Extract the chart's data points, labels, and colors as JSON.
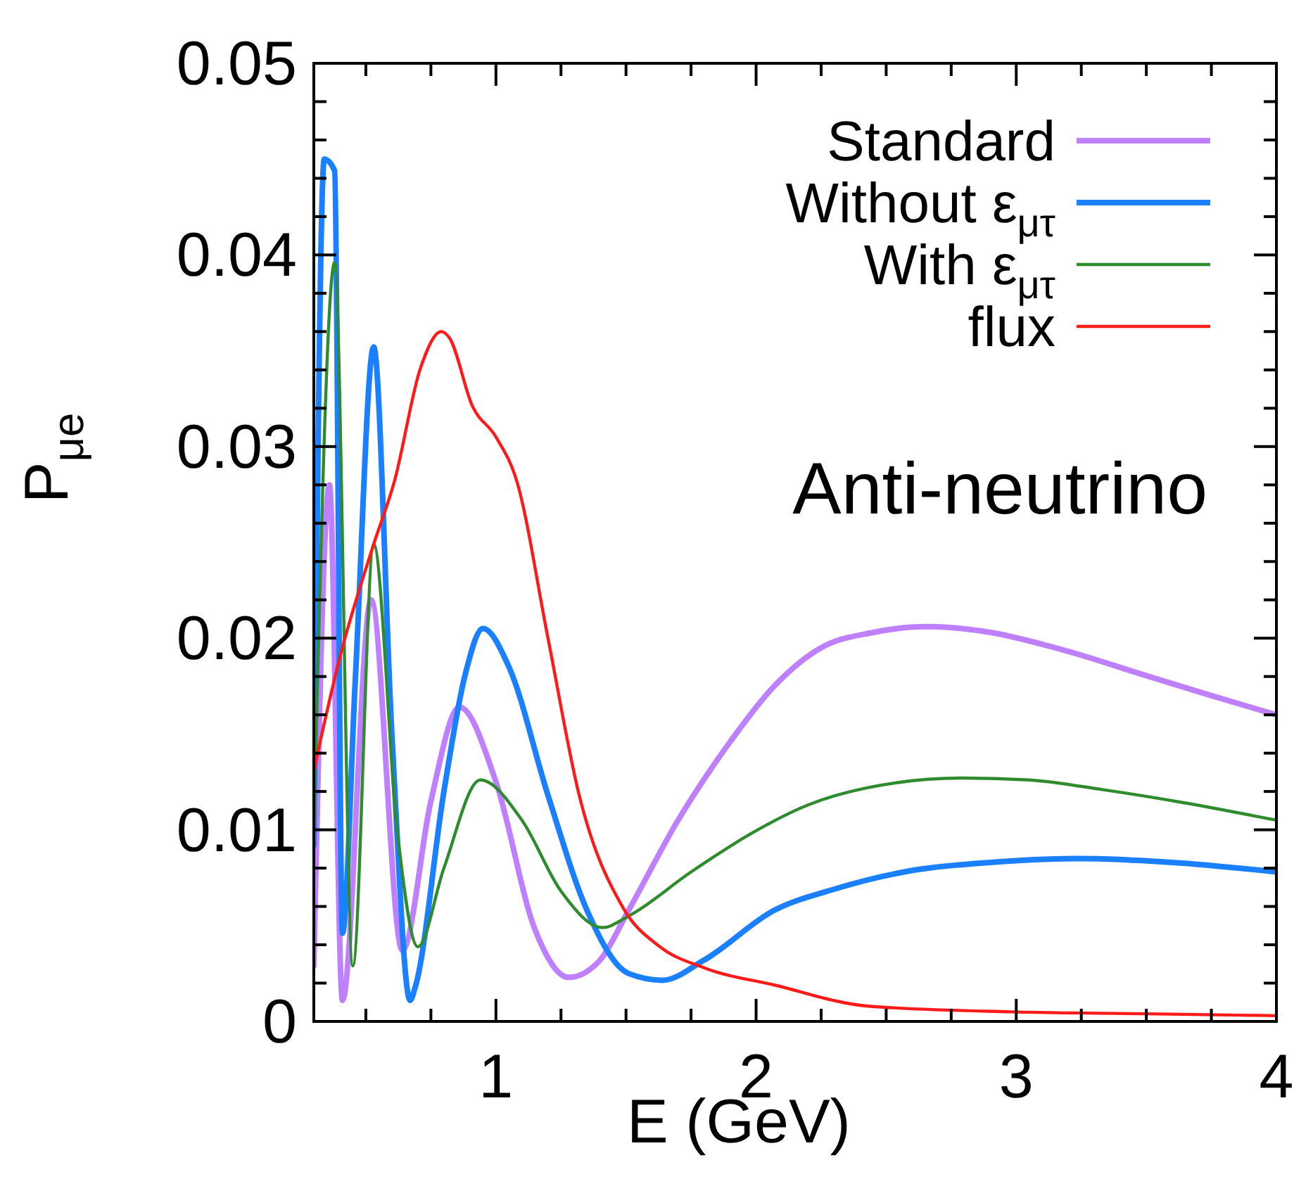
{
  "chart_data": {
    "type": "line",
    "xlabel": "E (GeV)",
    "ylabel": "P$_{μe}$",
    "xlim": [
      0.3,
      4
    ],
    "xticks": [
      {
        "value": 0.5,
        "label": null
      },
      {
        "value": 0.75,
        "label": null
      },
      1,
      {
        "value": 1.25,
        "label": null
      },
      {
        "value": 1.5,
        "label": null
      },
      {
        "value": 1.75,
        "label": null
      },
      2,
      {
        "value": 2.25,
        "label": null
      },
      {
        "value": 2.5,
        "label": null
      },
      {
        "value": 2.75,
        "label": null
      },
      3,
      {
        "value": 3.25,
        "label": null
      },
      {
        "value": 3.5,
        "label": null
      },
      {
        "value": 3.75,
        "label": null
      },
      4
    ],
    "ylim": [
      0,
      0.05
    ],
    "yticks": [
      0,
      {
        "value": 0.002,
        "label": null
      },
      {
        "value": 0.004,
        "label": null
      },
      {
        "value": 0.006,
        "label": null
      },
      {
        "value": 0.008,
        "label": null
      },
      0.01,
      {
        "value": 0.012,
        "label": null
      },
      {
        "value": 0.014,
        "label": null
      },
      {
        "value": 0.016,
        "label": null
      },
      {
        "value": 0.018,
        "label": null
      },
      0.02,
      {
        "value": 0.022,
        "label": null
      },
      {
        "value": 0.024,
        "label": null
      },
      {
        "value": 0.026,
        "label": null
      },
      {
        "value": 0.028,
        "label": null
      },
      0.03,
      {
        "value": 0.032,
        "label": null
      },
      {
        "value": 0.034,
        "label": null
      },
      {
        "value": 0.036,
        "label": null
      },
      {
        "value": 0.038,
        "label": null
      },
      0.04,
      {
        "value": 0.042,
        "label": null
      },
      {
        "value": 0.044,
        "label": null
      },
      {
        "value": 0.046,
        "label": null
      },
      {
        "value": 0.048,
        "label": null
      },
      0.05
    ],
    "grid": false,
    "legend": "top right",
    "marker": "none",
    "line_style": "solid",
    "annotations": [
      "Anti-neutrino"
    ],
    "series": [
      {
        "name": "Standard",
        "color": "#bf80ff",
        "x": [
          0.3,
          0.36,
          0.41,
          0.52,
          0.64,
          0.75,
          0.86,
          1.0,
          1.15,
          1.28,
          1.4,
          1.51,
          1.7,
          1.89,
          2.07,
          2.25,
          2.45,
          2.66,
          2.9,
          3.15,
          3.51,
          3.75,
          4.0
        ],
        "values": [
          0.0029,
          0.028,
          0.0011,
          0.022,
          0.0037,
          0.0115,
          0.0164,
          0.0125,
          0.0048,
          0.0023,
          0.0032,
          0.0058,
          0.0105,
          0.0144,
          0.0175,
          0.0195,
          0.0203,
          0.0206,
          0.0203,
          0.0195,
          0.018,
          0.017,
          0.016
        ]
      },
      {
        "name": "Without ε$_{μτ}$",
        "color": "#1a80ff",
        "x": [
          0.3,
          0.34,
          0.38,
          0.41,
          0.46,
          0.53,
          0.6,
          0.67,
          0.69,
          0.8,
          0.88,
          0.95,
          1.05,
          1.2,
          1.35,
          1.51,
          1.64,
          1.8,
          2.07,
          2.3,
          2.61,
          2.9,
          3.24,
          3.6,
          4.0
        ],
        "values": [
          0.0092,
          0.045,
          0.0444,
          0.0046,
          0.018,
          0.0352,
          0.015,
          0.0011,
          0.0018,
          0.012,
          0.018,
          0.0205,
          0.0185,
          0.0118,
          0.0058,
          0.0025,
          0.00215,
          0.0032,
          0.0058,
          0.0069,
          0.0079,
          0.0083,
          0.0085,
          0.0083,
          0.0078
        ]
      },
      {
        "name": "With ε$_{μτ}$",
        "color": "#2e8b2e",
        "x": [
          0.3,
          0.38,
          0.45,
          0.53,
          0.62,
          0.7,
          0.8,
          0.94,
          1.1,
          1.25,
          1.41,
          1.51,
          1.75,
          1.98,
          2.2,
          2.43,
          2.79,
          3.05,
          3.33,
          3.65,
          4.0
        ],
        "values": [
          0.01,
          0.0396,
          0.0029,
          0.0249,
          0.01,
          0.0039,
          0.008,
          0.0126,
          0.0105,
          0.0068,
          0.0049,
          0.0055,
          0.0078,
          0.0098,
          0.0113,
          0.0122,
          0.0127,
          0.0126,
          0.0121,
          0.0114,
          0.0105
        ]
      },
      {
        "name": "flux",
        "color": "#ff1a1a",
        "x": [
          0.3,
          0.4,
          0.53,
          0.61,
          0.71,
          0.79,
          0.82,
          0.91,
          1.0,
          1.08,
          1.2,
          1.32,
          1.49,
          1.63,
          1.8,
          2.07,
          2.43,
          2.98,
          3.5,
          4.0
        ],
        "values": [
          0.0131,
          0.019,
          0.0249,
          0.0282,
          0.0341,
          0.036,
          0.0357,
          0.0321,
          0.0305,
          0.0282,
          0.02,
          0.0118,
          0.0059,
          0.0039,
          0.0028,
          0.0019,
          0.0008,
          0.0005,
          0.0004,
          0.0003
        ]
      }
    ]
  }
}
